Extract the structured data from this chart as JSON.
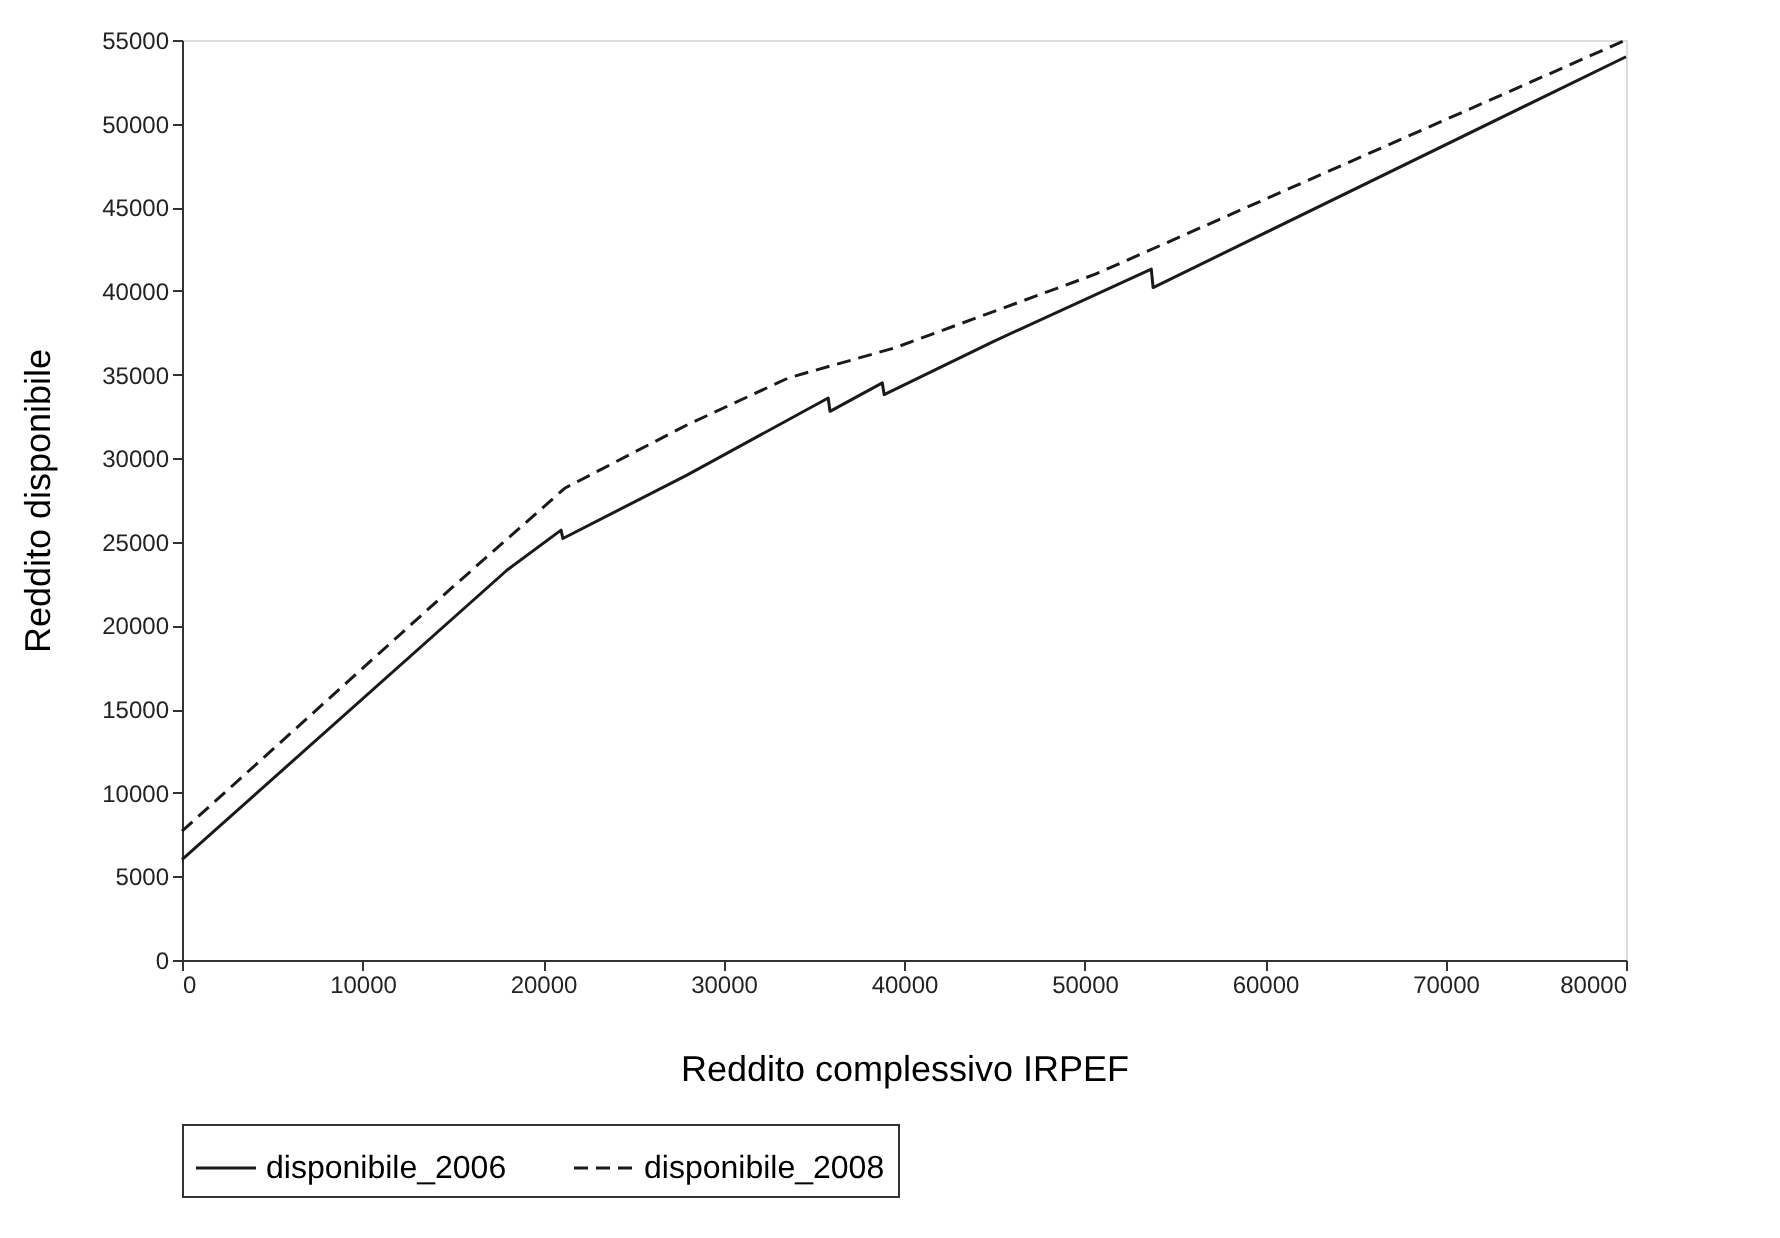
{
  "chart_data": {
    "type": "line",
    "xlabel": "Reddito complessivo IRPEF",
    "ylabel": "Reddito disponibile",
    "xlim": [
      0,
      80000
    ],
    "xticks": [
      0,
      10000,
      20000,
      30000,
      40000,
      50000,
      60000,
      70000,
      80000
    ],
    "ylim": [
      0,
      55000
    ],
    "yticks": [
      0,
      5000,
      10000,
      15000,
      20000,
      25000,
      30000,
      35000,
      40000,
      45000,
      50000,
      55000
    ],
    "grid": false,
    "legend": "bottom",
    "marker": "none",
    "series": [
      {
        "name": "disponibile_2006",
        "color": "#1a1a1a",
        "line_style": "solid",
        "x": [
          0,
          18000,
          21000,
          21100,
          28000,
          35800,
          35900,
          38800,
          38900,
          45000,
          53700,
          53800,
          80000
        ],
        "values": [
          6000,
          23300,
          25700,
          25200,
          29000,
          33600,
          32800,
          34500,
          33800,
          37000,
          41300,
          40200,
          54000
        ]
      },
      {
        "name": "disponibile_2008",
        "color": "#1a1a1a",
        "line_style": "dashed",
        "x": [
          0,
          15000,
          21200,
          28000,
          33600,
          39500,
          50600,
          80000
        ],
        "values": [
          7700,
          22300,
          28200,
          32000,
          34800,
          36600,
          41000,
          55000
        ]
      }
    ]
  }
}
